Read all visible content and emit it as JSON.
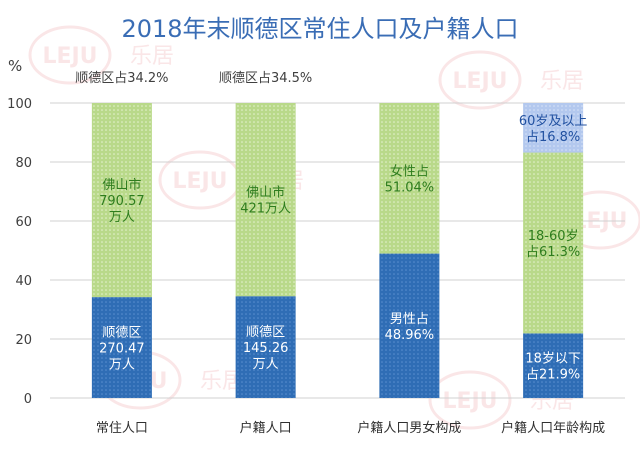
{
  "title": "2018年末顺德区常住人口及户籍人口",
  "watermark": {
    "brand": "LEJU",
    "cn": "乐居"
  },
  "colors": {
    "title": "#3a6db5",
    "blue": "#2f6db5",
    "blue_dot": "#5a8fd0",
    "green": "#b9d98a",
    "green_dot": "#e6f2d2",
    "lightblue": "#b3c8ee",
    "lightblue_dot": "#d9e4f8",
    "grid": "#d0d0d0",
    "axis_text": "#404040",
    "label_white": "#ffffff",
    "label_green": "#2e7d1e",
    "label_darkblue": "#2251a0"
  },
  "chart_data": {
    "type": "bar",
    "stacked": true,
    "ylabel": "%",
    "ylim": [
      0,
      100
    ],
    "yticks": [
      "0",
      "20",
      "40",
      "60",
      "80",
      "100"
    ],
    "grid": true,
    "categories": [
      "常住人口",
      "户籍人口",
      "户籍人口男女构成",
      "户籍人口年龄构成"
    ],
    "top_notes": [
      "顺德区占34.2%",
      "顺德区占34.5%",
      "",
      ""
    ],
    "bars": [
      {
        "segments": [
          {
            "value": 34.2,
            "color": "blue",
            "label": [
              "顺德区",
              "270.47",
              "万人"
            ]
          },
          {
            "value": 65.8,
            "color": "green",
            "label": [
              "佛山市",
              "790.57",
              "万人"
            ]
          }
        ]
      },
      {
        "segments": [
          {
            "value": 34.5,
            "color": "blue",
            "label": [
              "顺德区",
              "145.26",
              "万人"
            ]
          },
          {
            "value": 65.5,
            "color": "green",
            "label": [
              "佛山市",
              "421万人"
            ]
          }
        ]
      },
      {
        "segments": [
          {
            "value": 48.96,
            "color": "blue",
            "label": [
              "男性占",
              "48.96%"
            ]
          },
          {
            "value": 51.04,
            "color": "green",
            "label": [
              "女性占",
              "51.04%"
            ]
          }
        ]
      },
      {
        "segments": [
          {
            "value": 21.9,
            "color": "blue",
            "label": [
              "18岁以下",
              "占21.9%"
            ]
          },
          {
            "value": 61.3,
            "color": "green",
            "label": [
              "18-60岁",
              "占61.3%"
            ]
          },
          {
            "value": 16.8,
            "color": "lightblue",
            "label": [
              "60岁及以上",
              "占16.8%"
            ]
          }
        ]
      }
    ]
  }
}
